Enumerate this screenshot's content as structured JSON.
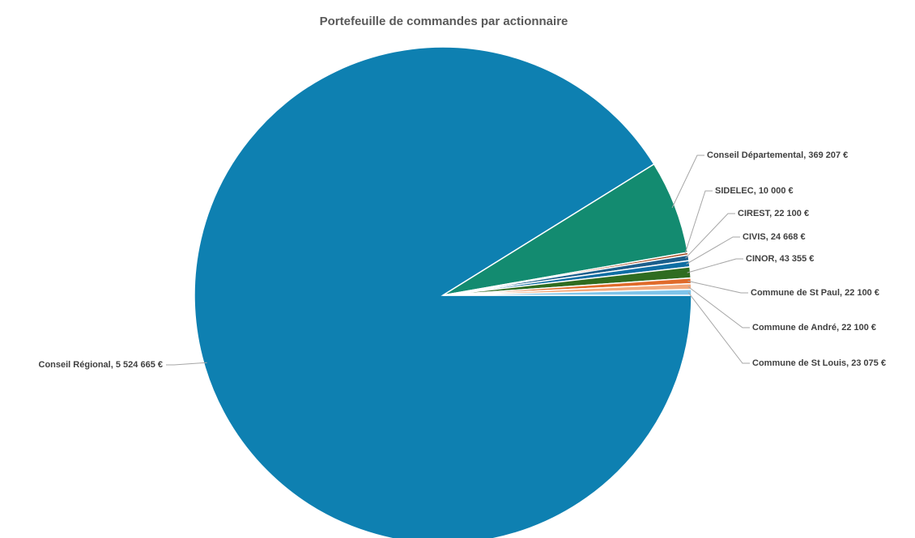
{
  "chart_data": {
    "type": "pie",
    "title": "Portefeuille de commandes par actionnaire",
    "categories": [
      "Conseil Régional",
      "Conseil Départemental",
      "SIDELEC",
      "CIREST",
      "CIVIS",
      "CINOR",
      "Commune de St Paul",
      "Commune de André",
      "Commune de St Louis"
    ],
    "values": [
      5524665,
      369207,
      10000,
      22100,
      24668,
      43355,
      22100,
      22100,
      23075
    ],
    "value_labels": [
      "5 524 665 €",
      "369 207 €",
      "10 000 €",
      "22 100 €",
      "24 668 €",
      "43 355 €",
      "22 100 €",
      "22 100 €",
      "23 075 €"
    ],
    "colors": [
      "#0e80b1",
      "#138b70",
      "#a3461b",
      "#1c5f8c",
      "#0f6ea3",
      "#2f6c20",
      "#e06b2b",
      "#f2a87c",
      "#7fc4ea"
    ]
  }
}
